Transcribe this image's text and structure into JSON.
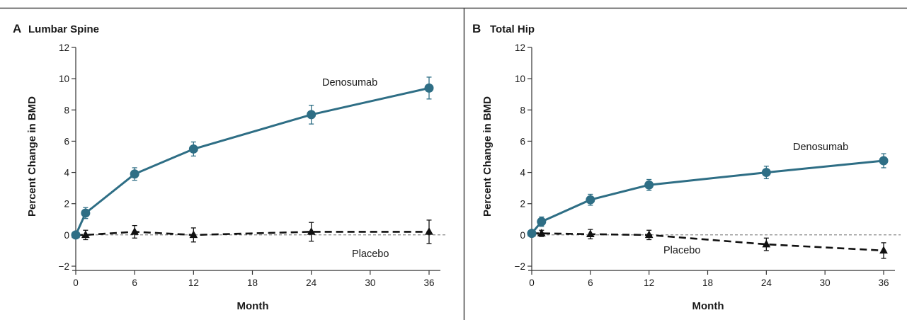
{
  "colors": {
    "denosumab": "#2e6e85",
    "placebo": "#111111",
    "reference_line": "#555555",
    "frame": "#333333"
  },
  "chart_data": [
    {
      "type": "line",
      "panel_letter": "A",
      "title": "Lumbar Spine",
      "xlabel": "Month",
      "ylabel": "Percent Change in BMD",
      "xlim": [
        0,
        36
      ],
      "ylim": [
        -2,
        12
      ],
      "xticks": [
        0,
        6,
        12,
        18,
        24,
        30,
        36
      ],
      "yticks": [
        -2,
        0,
        2,
        4,
        6,
        8,
        10,
        12
      ],
      "reference_line": 0,
      "grid": false,
      "series": [
        {
          "name": "Denosumab",
          "marker": "circle",
          "line_style": "solid",
          "x": [
            0,
            1,
            6,
            12,
            24,
            36
          ],
          "y": [
            0,
            1.4,
            3.9,
            5.5,
            7.7,
            9.4
          ],
          "error": [
            0,
            0.35,
            0.4,
            0.45,
            0.6,
            0.7
          ]
        },
        {
          "name": "Placebo",
          "marker": "triangle",
          "line_style": "dashed",
          "x": [
            0,
            1,
            6,
            12,
            24,
            36
          ],
          "y": [
            0,
            0.0,
            0.2,
            0.0,
            0.2,
            0.2
          ],
          "error": [
            0,
            0.3,
            0.4,
            0.45,
            0.6,
            0.75
          ]
        }
      ]
    },
    {
      "type": "line",
      "panel_letter": "B",
      "title": "Total Hip",
      "xlabel": "Month",
      "ylabel": "Percent Change in BMD",
      "xlim": [
        0,
        36
      ],
      "ylim": [
        -2,
        12
      ],
      "xticks": [
        0,
        6,
        12,
        18,
        24,
        30,
        36
      ],
      "yticks": [
        -2,
        0,
        2,
        4,
        6,
        8,
        10,
        12
      ],
      "reference_line": 0,
      "grid": false,
      "series": [
        {
          "name": "Denosumab",
          "marker": "circle",
          "line_style": "solid",
          "x": [
            0,
            1,
            6,
            12,
            24,
            36
          ],
          "y": [
            0.1,
            0.85,
            2.25,
            3.2,
            4.0,
            4.75
          ],
          "error": [
            0,
            0.3,
            0.35,
            0.35,
            0.4,
            0.45
          ]
        },
        {
          "name": "Placebo",
          "marker": "triangle",
          "line_style": "dashed",
          "x": [
            0,
            1,
            6,
            12,
            24,
            36
          ],
          "y": [
            0.1,
            0.1,
            0.05,
            0.0,
            -0.6,
            -1.0
          ],
          "error": [
            0,
            0.2,
            0.3,
            0.3,
            0.4,
            0.5
          ]
        }
      ]
    }
  ]
}
